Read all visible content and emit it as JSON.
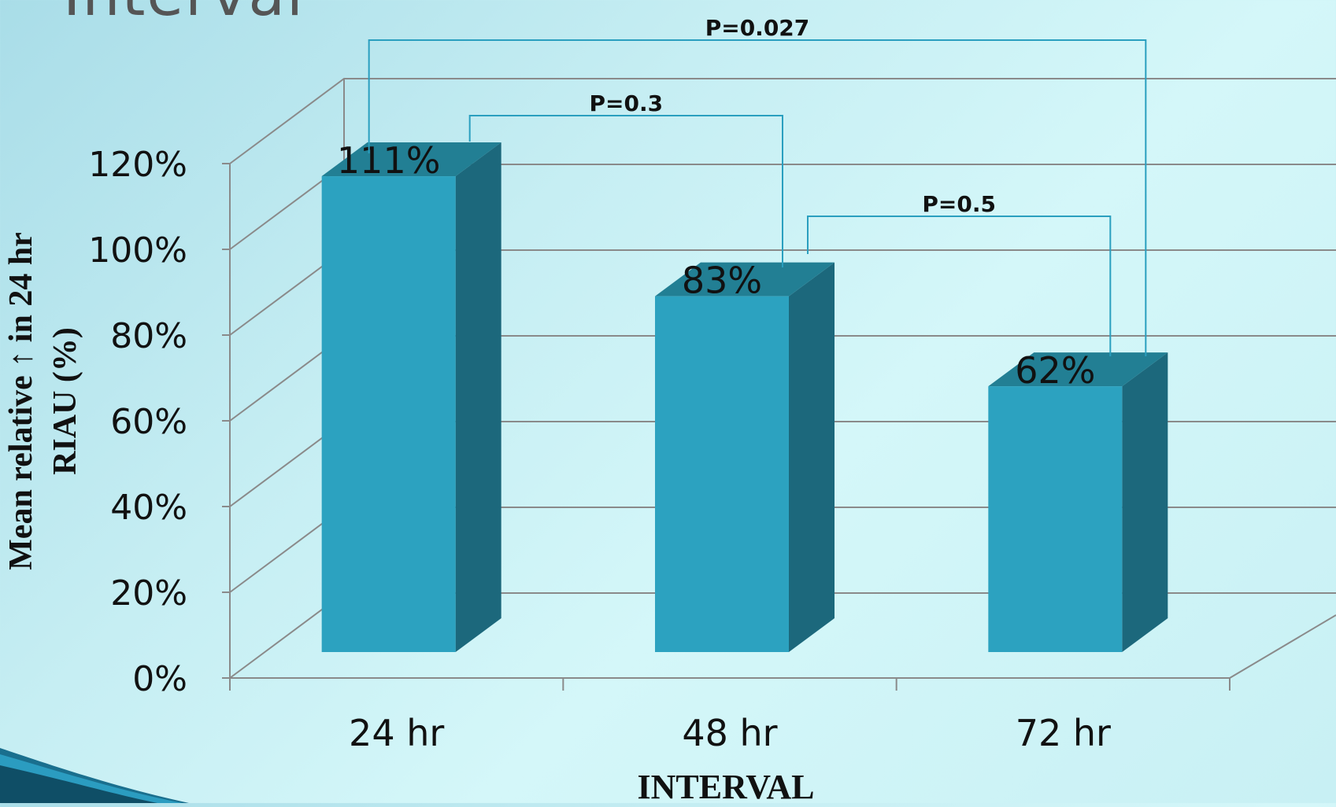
{
  "slide": {
    "title_fragment": "Interval"
  },
  "chart_data": {
    "type": "bar",
    "categories": [
      "24 hr",
      "48 hr",
      "72 hr"
    ],
    "values": [
      111,
      83,
      62
    ],
    "data_labels": [
      "111%",
      "83%",
      "62%"
    ],
    "ylabel_lines": [
      "Mean relative ↑ in 24 hr",
      "RIAU (%)"
    ],
    "xlabel": "INTERVAL",
    "ylim": [
      0,
      120
    ],
    "y_ticks": [
      0,
      20,
      40,
      60,
      80,
      100,
      120
    ],
    "y_tick_labels": [
      "0%",
      "20%",
      "40%",
      "60%",
      "80%",
      "100%",
      "120%"
    ],
    "grid": true,
    "style": "3d-column",
    "colors": {
      "bar_front": "#2ca2c0",
      "bar_side": "#1c687c",
      "bar_top": "#227f94",
      "gridline": "#8a8a8a",
      "bracket": "#2a9fbf"
    },
    "annotations": [
      {
        "text": "P=0.027",
        "from": "24 hr",
        "to": "72 hr"
      },
      {
        "text": "P=0.3",
        "from": "24 hr",
        "to": "48 hr"
      },
      {
        "text": "P=0.5",
        "from": "48 hr",
        "to": "72 hr"
      }
    ]
  }
}
